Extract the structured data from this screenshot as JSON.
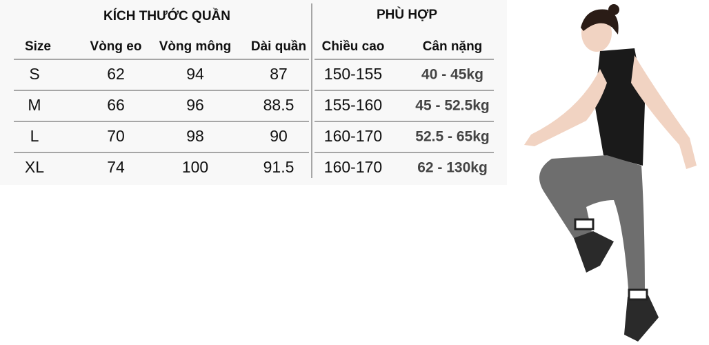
{
  "table": {
    "groups": [
      "KÍCH THƯỚC QUẦN",
      "PHÙ HỢP"
    ],
    "columns": [
      "Size",
      "Vòng eo",
      "Vòng mông",
      "Dài quần",
      "Chiều cao",
      "Cân nặng"
    ],
    "rows": [
      [
        "S",
        "62",
        "94",
        "87",
        "150-155",
        "40 - 45kg"
      ],
      [
        "M",
        "66",
        "96",
        "88.5",
        "155-160",
        "45 - 52.5kg"
      ],
      [
        "L",
        "70",
        "98",
        "90",
        "160-170",
        "52.5 - 65kg"
      ],
      [
        "XL",
        "74",
        "100",
        "91.5",
        "160-170",
        "62 - 130kg"
      ]
    ]
  }
}
